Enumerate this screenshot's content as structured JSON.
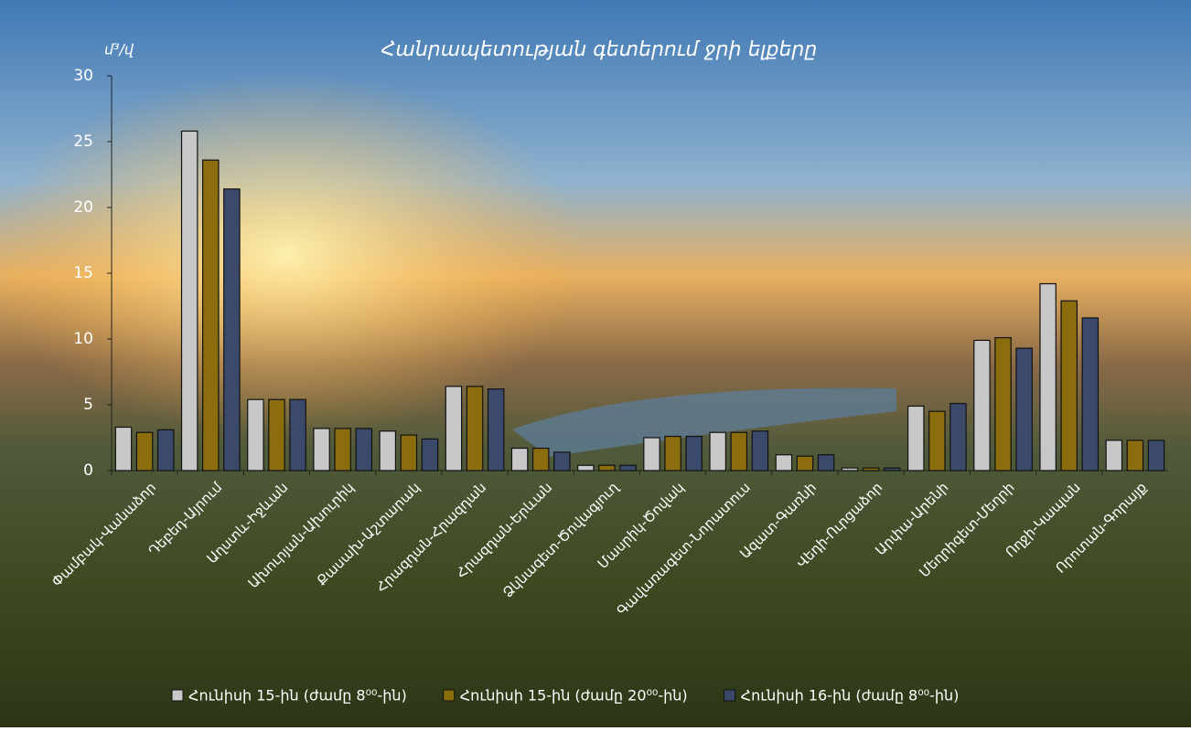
{
  "chart_data": {
    "type": "bar",
    "title": "Հանրապետության գետերում ջրի ելքերը",
    "y_label": "մ³/վ",
    "categories": [
      "Փամբակ-Վանաձոր",
      "Դեբեդ-Այրում",
      "Աղստև-Իջևան",
      "Ախուրյան-Ախուրիկ",
      "Քասախ-Աշտարակ",
      "Հրազդան-Հրազդան",
      "Հրազդան-Երևան",
      "Ձկնագետ-Ծովագյուղ",
      "Մասրիկ-Ծովակ",
      "Գավառագետ-Նորատուս",
      "Ազատ-Գառնի",
      "Վեդի-Ուրցաձոր",
      "Արփա-Արենի",
      "Մեղրիգետ-Մեղրի",
      "Ողջի-Կապան",
      "Որոտան-Գորայք"
    ],
    "series": [
      {
        "name": "Հունիսի 15-ին (ժամը 8⁰⁰-ին)",
        "color": "#c8c8c8",
        "values": [
          3.3,
          25.8,
          5.4,
          3.2,
          3.0,
          6.4,
          1.7,
          0.4,
          2.5,
          2.9,
          1.2,
          0.2,
          4.9,
          9.9,
          14.2,
          2.3
        ]
      },
      {
        "name": "Հունիսի 15-ին (ժամը 20⁰⁰-ին)",
        "color": "#8b6d0e",
        "values": [
          2.9,
          23.6,
          5.4,
          3.2,
          2.7,
          6.4,
          1.7,
          0.4,
          2.6,
          2.9,
          1.1,
          0.2,
          4.5,
          10.1,
          12.9,
          2.3
        ]
      },
      {
        "name": "Հունիսի 16-ին (ժամը 8⁰⁰-ին)",
        "color": "#3b4a6b",
        "values": [
          3.1,
          21.4,
          5.4,
          3.2,
          2.4,
          6.2,
          1.4,
          0.4,
          2.6,
          3.0,
          1.2,
          0.2,
          5.1,
          9.3,
          11.6,
          2.3
        ]
      }
    ],
    "ylim": [
      0,
      30
    ],
    "yticks": [
      0,
      5,
      10,
      15,
      20,
      25,
      30
    ]
  }
}
